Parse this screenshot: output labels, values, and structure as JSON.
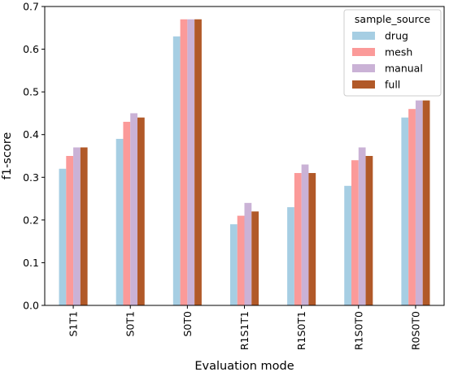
{
  "chart_data": {
    "type": "bar",
    "title": "",
    "xlabel": "Evaluation mode",
    "ylabel": "f1-score",
    "ylim": [
      0,
      0.7
    ],
    "yticks": [
      "0.0",
      "0.1",
      "0.2",
      "0.3",
      "0.4",
      "0.5",
      "0.6",
      "0.7"
    ],
    "categories": [
      "S1T1",
      "S0T1",
      "S0T0",
      "R1S1T1",
      "R1S0T1",
      "R1S0T0",
      "R0S0T0"
    ],
    "legend_title": "sample_source",
    "legend_position": "top-right",
    "grid": false,
    "series": [
      {
        "name": "drug",
        "color": "#a6cee3",
        "values": [
          0.32,
          0.39,
          0.63,
          0.19,
          0.23,
          0.28,
          0.44
        ]
      },
      {
        "name": "mesh",
        "color": "#fb9a99",
        "values": [
          0.35,
          0.43,
          0.67,
          0.21,
          0.31,
          0.34,
          0.46
        ]
      },
      {
        "name": "manual",
        "color": "#cab2d6",
        "values": [
          0.37,
          0.45,
          0.67,
          0.24,
          0.33,
          0.37,
          0.48
        ]
      },
      {
        "name": "full",
        "color": "#b15928",
        "values": [
          0.37,
          0.44,
          0.67,
          0.22,
          0.31,
          0.35,
          0.48
        ]
      }
    ]
  }
}
